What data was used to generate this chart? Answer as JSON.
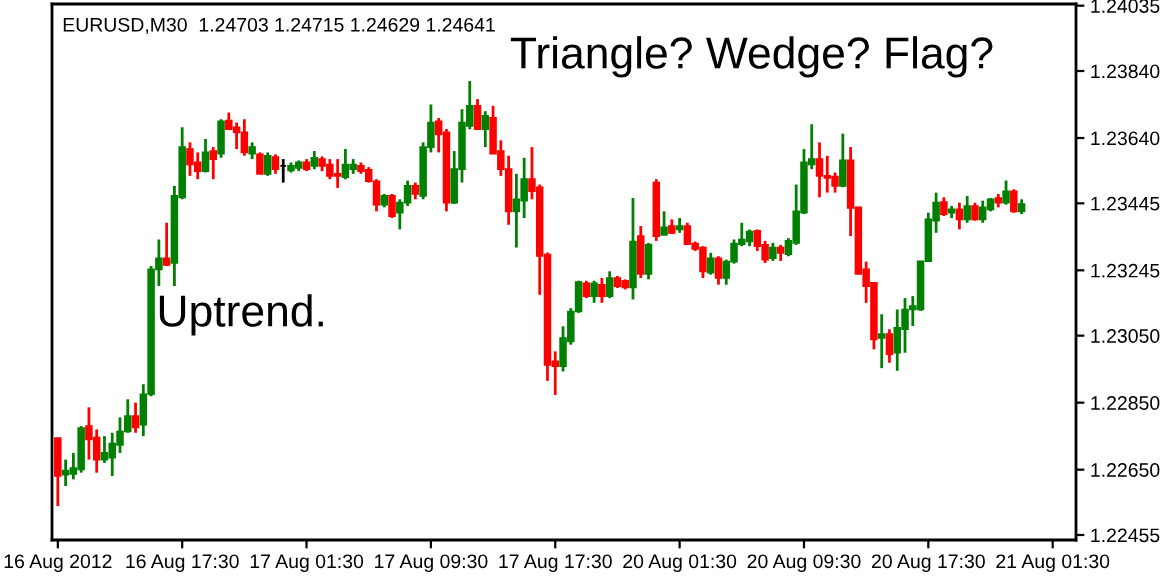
{
  "chart_data": {
    "type": "candlestick",
    "annotations": [
      "EURUSD,M30  1.24703 1.24715 1.24629 1.24641",
      "Triangle? Wedge? Flag?",
      "Uptrend."
    ],
    "categories": [
      "16 Aug 2012",
      null,
      null,
      null,
      null,
      null,
      null,
      null,
      null,
      null,
      null,
      null,
      null,
      null,
      null,
      null,
      "16 Aug 17:30",
      null,
      null,
      null,
      null,
      null,
      null,
      null,
      null,
      null,
      null,
      null,
      null,
      null,
      null,
      null,
      "17 Aug 01:30",
      null,
      null,
      null,
      null,
      null,
      null,
      null,
      null,
      null,
      null,
      null,
      null,
      null,
      null,
      null,
      "17 Aug 09:30",
      null,
      null,
      null,
      null,
      null,
      null,
      null,
      null,
      null,
      null,
      null,
      null,
      null,
      null,
      null,
      "17 Aug 17:30",
      null,
      null,
      null,
      null,
      null,
      null,
      null,
      null,
      null,
      null,
      null,
      null,
      null,
      null,
      null,
      "20 Aug 01:30",
      null,
      null,
      null,
      null,
      null,
      null,
      null,
      null,
      null,
      null,
      null,
      null,
      null,
      null,
      null,
      "20 Aug 09:30",
      null,
      null,
      null,
      null,
      null,
      null,
      null,
      null,
      null,
      null,
      null,
      null,
      null,
      null,
      null,
      "20 Aug 17:30",
      null,
      null,
      null,
      null,
      null,
      null,
      null,
      null,
      null,
      null,
      null,
      null,
      null,
      null,
      null,
      "21 Aug 01:30"
    ],
    "ohlc": [
      [
        1.22744,
        1.22744,
        1.22541,
        1.22631
      ],
      [
        1.22635,
        1.2268,
        1.22601,
        1.22647
      ],
      [
        1.22637,
        1.227,
        1.22621,
        1.22655
      ],
      [
        1.22651,
        1.2278,
        1.22641,
        1.22774
      ],
      [
        1.2278,
        1.22836,
        1.2268,
        1.2274
      ],
      [
        1.22746,
        1.2277,
        1.22641,
        1.2268
      ],
      [
        1.2268,
        1.2275,
        1.2267,
        1.227
      ],
      [
        1.22686,
        1.2276,
        1.22631,
        1.22728
      ],
      [
        1.22724,
        1.22806,
        1.227,
        1.22764
      ],
      [
        1.22764,
        1.2286,
        1.2276,
        1.2281
      ],
      [
        1.2281,
        1.2285,
        1.2276,
        1.22776
      ],
      [
        1.22784,
        1.22905,
        1.2275,
        1.22875
      ],
      [
        1.22875,
        1.23258,
        1.22869,
        1.23248
      ],
      [
        1.23248,
        1.23337,
        1.23198,
        1.23281
      ],
      [
        1.23281,
        1.23387,
        1.23258,
        1.23261
      ],
      [
        1.23267,
        1.23497,
        1.23198,
        1.23467
      ],
      [
        1.23463,
        1.23672,
        1.23457,
        1.23613
      ],
      [
        1.23607,
        1.23627,
        1.23527,
        1.23561
      ],
      [
        1.23567,
        1.23597,
        1.23517,
        1.23541
      ],
      [
        1.23541,
        1.23637,
        1.23537,
        1.23597
      ],
      [
        1.23601,
        1.23613,
        1.23517,
        1.23577
      ],
      [
        1.23593,
        1.23696,
        1.23581,
        1.2369
      ],
      [
        1.23692,
        1.23716,
        1.23666,
        1.23666
      ],
      [
        1.23672,
        1.23686,
        1.23607,
        1.23657
      ],
      [
        1.23657,
        1.23696,
        1.23587,
        1.23597
      ],
      [
        1.23593,
        1.23627,
        1.23577,
        1.23613
      ],
      [
        1.23591,
        1.23597,
        1.23533,
        1.23533
      ],
      [
        1.23533,
        1.23597,
        1.23527,
        1.23587
      ],
      [
        1.23583,
        1.23591,
        1.23533,
        1.23547
      ],
      [
        1.23557,
        1.23577,
        1.23507,
        1.23557
      ],
      [
        1.23543,
        1.23567,
        1.23537,
        1.23557
      ],
      [
        1.23551,
        1.23573,
        1.23541,
        1.23567
      ],
      [
        1.23567,
        1.23577,
        1.23541,
        1.23547
      ],
      [
        1.23557,
        1.23601,
        1.23547,
        1.23581
      ],
      [
        1.23577,
        1.23585,
        1.23541,
        1.23557
      ],
      [
        1.23561,
        1.23577,
        1.23517,
        1.23527
      ],
      [
        1.23533,
        1.23577,
        1.23491,
        1.23527
      ],
      [
        1.23523,
        1.23607,
        1.23517,
        1.23561
      ],
      [
        1.23547,
        1.23577,
        1.23533,
        1.23561
      ],
      [
        1.23557,
        1.23567,
        1.23533,
        1.23541
      ],
      [
        1.23545,
        1.23553,
        1.23507,
        1.23511
      ],
      [
        1.23511,
        1.23517,
        1.23421,
        1.23441
      ],
      [
        1.23441,
        1.23473,
        1.23433,
        1.23467
      ],
      [
        1.23467,
        1.23473,
        1.23401,
        1.23407
      ],
      [
        1.23417,
        1.23457,
        1.23367,
        1.23447
      ],
      [
        1.23447,
        1.23513,
        1.23437,
        1.23497
      ],
      [
        1.23497,
        1.23507,
        1.23457,
        1.23473
      ],
      [
        1.23467,
        1.23627,
        1.23457,
        1.23613
      ],
      [
        1.23613,
        1.2374,
        1.23597,
        1.23686
      ],
      [
        1.2369,
        1.237,
        1.23597,
        1.23651
      ],
      [
        1.23657,
        1.23667,
        1.23421,
        1.23447
      ],
      [
        1.23447,
        1.23601,
        1.23443,
        1.23547
      ],
      [
        1.23547,
        1.23726,
        1.23507,
        1.23686
      ],
      [
        1.23676,
        1.2381,
        1.23666,
        1.23736
      ],
      [
        1.23736,
        1.23756,
        1.23666,
        1.23666
      ],
      [
        1.23666,
        1.2372,
        1.23613,
        1.23706
      ],
      [
        1.237,
        1.23736,
        1.23593,
        1.23593
      ],
      [
        1.23601,
        1.23633,
        1.23527,
        1.23547
      ],
      [
        1.23547,
        1.23587,
        1.23381,
        1.23421
      ],
      [
        1.23421,
        1.23533,
        1.23313,
        1.23457
      ],
      [
        1.23453,
        1.23581,
        1.23401,
        1.23517
      ],
      [
        1.23517,
        1.23613,
        1.23457,
        1.23481
      ],
      [
        1.23493,
        1.23501,
        1.23172,
        1.23288
      ],
      [
        1.23292,
        1.23298,
        1.22915,
        1.22963
      ],
      [
        1.22973,
        1.23003,
        1.22873,
        1.22959
      ],
      [
        1.22959,
        1.23078,
        1.22943,
        1.23043
      ],
      [
        1.23033,
        1.23132,
        1.23023,
        1.23122
      ],
      [
        1.23122,
        1.23214,
        1.23118,
        1.2321
      ],
      [
        1.23206,
        1.23214,
        1.23162,
        1.23168
      ],
      [
        1.23168,
        1.23214,
        1.23148,
        1.23206
      ],
      [
        1.23202,
        1.23222,
        1.23148,
        1.23168
      ],
      [
        1.23168,
        1.23242,
        1.23162,
        1.23222
      ],
      [
        1.23222,
        1.23228,
        1.23192,
        1.23198
      ],
      [
        1.23214,
        1.23218,
        1.23188,
        1.23194
      ],
      [
        1.23194,
        1.23461,
        1.23158,
        1.23331
      ],
      [
        1.23347,
        1.23377,
        1.23222,
        1.23234
      ],
      [
        1.23234,
        1.23327,
        1.23218,
        1.23321
      ],
      [
        1.23507,
        1.23517,
        1.23333,
        1.23347
      ],
      [
        1.23351,
        1.23421,
        1.23351,
        1.23373
      ],
      [
        1.23377,
        1.23397,
        1.23353,
        1.23357
      ],
      [
        1.23367,
        1.23401,
        1.23357,
        1.23377
      ],
      [
        1.23377,
        1.23387,
        1.23321,
        1.23323
      ],
      [
        1.23325,
        1.23331,
        1.23303,
        1.23309
      ],
      [
        1.23313,
        1.23317,
        1.23222,
        1.23242
      ],
      [
        1.23238,
        1.23297,
        1.23232,
        1.23281
      ],
      [
        1.23281,
        1.23287,
        1.23202,
        1.23222
      ],
      [
        1.23222,
        1.23277,
        1.23202,
        1.23271
      ],
      [
        1.23271,
        1.23337,
        1.23265,
        1.23325
      ],
      [
        1.23323,
        1.23387,
        1.23317,
        1.23337
      ],
      [
        1.23331,
        1.23367,
        1.23317,
        1.23361
      ],
      [
        1.23363,
        1.23367,
        1.23303,
        1.23317
      ],
      [
        1.23321,
        1.23333,
        1.23267,
        1.23277
      ],
      [
        1.23281,
        1.23327,
        1.23273,
        1.23313
      ],
      [
        1.23313,
        1.23321,
        1.23273,
        1.23297
      ],
      [
        1.23293,
        1.23341,
        1.23287,
        1.23333
      ],
      [
        1.23327,
        1.23501,
        1.23321,
        1.23421
      ],
      [
        1.23417,
        1.23607,
        1.23413,
        1.23567
      ],
      [
        1.23561,
        1.23681,
        1.23547,
        1.23577
      ],
      [
        1.23577,
        1.23627,
        1.23463,
        1.23527
      ],
      [
        1.23527,
        1.23587,
        1.23477,
        1.23521
      ],
      [
        1.23525,
        1.23537,
        1.23477,
        1.23497
      ],
      [
        1.23497,
        1.23653,
        1.23493,
        1.23573
      ],
      [
        1.23573,
        1.23613,
        1.23347,
        1.23431
      ],
      [
        1.23433,
        1.23433,
        1.23234,
        1.23234
      ],
      [
        1.23248,
        1.23271,
        1.23148,
        1.23198
      ],
      [
        1.23208,
        1.23208,
        1.23009,
        1.23039
      ],
      [
        1.23043,
        1.23114,
        1.22953,
        1.23055
      ],
      [
        1.23055,
        1.23069,
        1.22969,
        1.22995
      ],
      [
        1.22999,
        1.23128,
        1.22945,
        1.23073
      ],
      [
        1.23069,
        1.23162,
        1.22999,
        1.23128
      ],
      [
        1.23128,
        1.23168,
        1.23079,
        1.23138
      ],
      [
        1.23128,
        1.23272,
        1.23124,
        1.23272
      ],
      [
        1.23272,
        1.23417,
        1.23272,
        1.23397
      ],
      [
        1.23393,
        1.23477,
        1.23357,
        1.23447
      ],
      [
        1.23449,
        1.23463,
        1.23407,
        1.23413
      ],
      [
        1.23417,
        1.23437,
        1.23401,
        1.23427
      ],
      [
        1.23427,
        1.23447,
        1.23367,
        1.23397
      ],
      [
        1.23397,
        1.23467,
        1.23387,
        1.23437
      ],
      [
        1.23437,
        1.23447,
        1.23393,
        1.23397
      ],
      [
        1.23397,
        1.23453,
        1.23387,
        1.23433
      ],
      [
        1.23427,
        1.23461,
        1.23421,
        1.23457
      ],
      [
        1.23461,
        1.23473,
        1.23433,
        1.23447
      ],
      [
        1.23447,
        1.23513,
        1.23441,
        1.23481
      ],
      [
        1.23481,
        1.23487,
        1.23417,
        1.23421
      ],
      [
        1.23421,
        1.23457,
        1.23413,
        1.23443
      ],
      null,
      null,
      null,
      null
    ],
    "colors": [
      "#ff0000",
      "#008000",
      "#008000",
      "#008000",
      "#ff0000",
      "#ff0000",
      "#008000",
      "#008000",
      "#008000",
      "#008000",
      "#ff0000",
      "#008000",
      "#008000",
      "#008000",
      "#ff0000",
      "#008000",
      "#008000",
      "#ff0000",
      "#ff0000",
      "#008000",
      "#ff0000",
      "#008000",
      "#ff0000",
      "#ff0000",
      "#ff0000",
      "#008000",
      "#ff0000",
      "#008000",
      "#ff0000",
      "#000000",
      "#008000",
      "#008000",
      "#ff0000",
      "#008000",
      "#ff0000",
      "#ff0000",
      "#ff0000",
      "#008000",
      "#008000",
      "#ff0000",
      "#ff0000",
      "#ff0000",
      "#008000",
      "#ff0000",
      "#008000",
      "#008000",
      "#ff0000",
      "#008000",
      "#008000",
      "#ff0000",
      "#ff0000",
      "#008000",
      "#008000",
      "#008000",
      "#ff0000",
      "#008000",
      "#ff0000",
      "#ff0000",
      "#ff0000",
      "#008000",
      "#008000",
      "#ff0000",
      "#ff0000",
      "#ff0000",
      "#ff0000",
      "#008000",
      "#008000",
      "#008000",
      "#ff0000",
      "#008000",
      "#ff0000",
      "#008000",
      "#ff0000",
      "#ff0000",
      "#008000",
      "#ff0000",
      "#008000",
      "#ff0000",
      "#008000",
      "#ff0000",
      "#008000",
      "#ff0000",
      "#ff0000",
      "#ff0000",
      "#008000",
      "#ff0000",
      "#008000",
      "#008000",
      "#008000",
      "#008000",
      "#ff0000",
      "#ff0000",
      "#008000",
      "#ff0000",
      "#008000",
      "#008000",
      "#008000",
      "#008000",
      "#ff0000",
      "#ff0000",
      "#ff0000",
      "#008000",
      "#ff0000",
      "#ff0000",
      "#ff0000",
      "#ff0000",
      "#008000",
      "#ff0000",
      "#008000",
      "#008000",
      "#008000",
      "#008000",
      "#008000",
      "#008000",
      "#ff0000",
      "#008000",
      "#ff0000",
      "#008000",
      "#ff0000",
      "#008000",
      "#008000",
      "#ff0000",
      "#008000",
      "#ff0000",
      "#008000",
      null,
      null,
      null,
      null
    ],
    "ylim": [
      1.2244,
      1.2404
    ],
    "yticks": [
      1.24035,
      {
        "value": 1.2384,
        "label": "1.23840"
      },
      {
        "value": 1.2364,
        "label": "1.23640"
      },
      1.23445,
      1.23245,
      {
        "value": 1.2305,
        "label": "1.23050"
      },
      {
        "value": 1.2285,
        "label": "1.22850"
      },
      {
        "value": 1.2265,
        "label": "1.22650"
      },
      1.22455
    ],
    "grid": false
  }
}
